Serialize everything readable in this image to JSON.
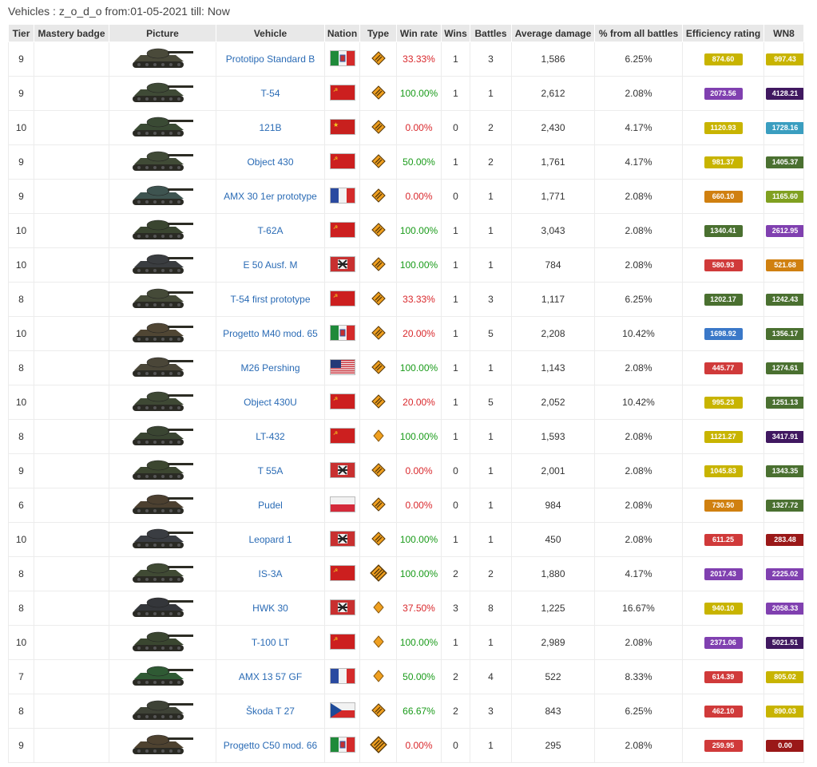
{
  "caption": "Vehicles : z_o_d_o from:01-05-2021 till: Now",
  "headers": [
    "Tier",
    "Mastery badge",
    "Picture",
    "Vehicle",
    "Nation",
    "Type",
    "Win rate",
    "Wins",
    "Battles",
    "Average damage",
    "% from all battles",
    "Efficiency rating",
    "WN8"
  ],
  "colors": {
    "win_good": "#1a9b1a",
    "win_bad": "#d9282c",
    "link": "#2a6bb5"
  },
  "rows": [
    {
      "tier": "9",
      "vehicle": "Prototipo Standard B",
      "nation": "italy",
      "type": "medium",
      "win_rate": "33.33%",
      "win_good": false,
      "wins": "1",
      "battles": "3",
      "avg_damage": "1,586",
      "pct": "6.25%",
      "eff": "874.60",
      "eff_color": "#c8b400",
      "wn8": "997.43",
      "wn8_color": "#c8b400",
      "tank_tone": "#4a4a3a"
    },
    {
      "tier": "9",
      "vehicle": "T-54",
      "nation": "ussr",
      "type": "medium",
      "win_rate": "100.00%",
      "win_good": true,
      "wins": "1",
      "battles": "1",
      "avg_damage": "2,612",
      "pct": "2.08%",
      "eff": "2073.56",
      "eff_color": "#8040b0",
      "wn8": "4128.21",
      "wn8_color": "#401860",
      "tank_tone": "#3f4a36"
    },
    {
      "tier": "10",
      "vehicle": "121B",
      "nation": "china",
      "type": "medium",
      "win_rate": "0.00%",
      "win_good": false,
      "wins": "0",
      "battles": "2",
      "avg_damage": "2,430",
      "pct": "4.17%",
      "eff": "1120.93",
      "eff_color": "#c8b400",
      "wn8": "1728.16",
      "wn8_color": "#3a9ec0",
      "tank_tone": "#3a4a34"
    },
    {
      "tier": "9",
      "vehicle": "Object 430",
      "nation": "ussr",
      "type": "medium",
      "win_rate": "50.00%",
      "win_good": true,
      "wins": "1",
      "battles": "2",
      "avg_damage": "1,761",
      "pct": "4.17%",
      "eff": "981.37",
      "eff_color": "#c8b400",
      "wn8": "1405.37",
      "wn8_color": "#4a7030",
      "tank_tone": "#404a36"
    },
    {
      "tier": "9",
      "vehicle": "AMX 30 1er prototype",
      "nation": "france",
      "type": "medium",
      "win_rate": "0.00%",
      "win_good": false,
      "wins": "0",
      "battles": "1",
      "avg_damage": "1,771",
      "pct": "2.08%",
      "eff": "660.10",
      "eff_color": "#d08010",
      "wn8": "1165.60",
      "wn8_color": "#80a020",
      "tank_tone": "#3e5450"
    },
    {
      "tier": "10",
      "vehicle": "T-62A",
      "nation": "ussr",
      "type": "medium",
      "win_rate": "100.00%",
      "win_good": true,
      "wins": "1",
      "battles": "1",
      "avg_damage": "3,043",
      "pct": "2.08%",
      "eff": "1340.41",
      "eff_color": "#4a7030",
      "wn8": "2612.95",
      "wn8_color": "#8040b0",
      "tank_tone": "#3a4530"
    },
    {
      "tier": "10",
      "vehicle": "E 50 Ausf. M",
      "nation": "germany",
      "type": "medium",
      "win_rate": "100.00%",
      "win_good": true,
      "wins": "1",
      "battles": "1",
      "avg_damage": "784",
      "pct": "2.08%",
      "eff": "580.93",
      "eff_color": "#d03a3a",
      "wn8": "521.68",
      "wn8_color": "#d08010",
      "tank_tone": "#3a3d40"
    },
    {
      "tier": "8",
      "vehicle": "T-54 first prototype",
      "nation": "ussr",
      "type": "medium",
      "win_rate": "33.33%",
      "win_good": false,
      "wins": "1",
      "battles": "3",
      "avg_damage": "1,117",
      "pct": "6.25%",
      "eff": "1202.17",
      "eff_color": "#4a7030",
      "wn8": "1242.43",
      "wn8_color": "#4a7030",
      "tank_tone": "#454a38"
    },
    {
      "tier": "10",
      "vehicle": "Progetto M40 mod. 65",
      "nation": "italy",
      "type": "medium",
      "win_rate": "20.00%",
      "win_good": false,
      "wins": "1",
      "battles": "5",
      "avg_damage": "2,208",
      "pct": "10.42%",
      "eff": "1698.92",
      "eff_color": "#3a78c8",
      "wn8": "1356.17",
      "wn8_color": "#4a7030",
      "tank_tone": "#504634"
    },
    {
      "tier": "8",
      "vehicle": "M26 Pershing",
      "nation": "usa",
      "type": "medium",
      "win_rate": "100.00%",
      "win_good": true,
      "wins": "1",
      "battles": "1",
      "avg_damage": "1,143",
      "pct": "2.08%",
      "eff": "445.77",
      "eff_color": "#d03a3a",
      "wn8": "1274.61",
      "wn8_color": "#4a7030",
      "tank_tone": "#4a4638"
    },
    {
      "tier": "10",
      "vehicle": "Object 430U",
      "nation": "ussr",
      "type": "medium",
      "win_rate": "20.00%",
      "win_good": false,
      "wins": "1",
      "battles": "5",
      "avg_damage": "2,052",
      "pct": "10.42%",
      "eff": "995.23",
      "eff_color": "#c8b400",
      "wn8": "1251.13",
      "wn8_color": "#4a7030",
      "tank_tone": "#3e4834"
    },
    {
      "tier": "8",
      "vehicle": "LT-432",
      "nation": "ussr",
      "type": "light",
      "win_rate": "100.00%",
      "win_good": true,
      "wins": "1",
      "battles": "1",
      "avg_damage": "1,593",
      "pct": "2.08%",
      "eff": "1121.27",
      "eff_color": "#c8b400",
      "wn8": "3417.91",
      "wn8_color": "#401860",
      "tank_tone": "#3a4532"
    },
    {
      "tier": "9",
      "vehicle": "T 55A",
      "nation": "germany",
      "type": "medium",
      "win_rate": "0.00%",
      "win_good": false,
      "wins": "0",
      "battles": "1",
      "avg_damage": "2,001",
      "pct": "2.08%",
      "eff": "1045.83",
      "eff_color": "#c8b400",
      "wn8": "1343.35",
      "wn8_color": "#4a7030",
      "tank_tone": "#3c4630"
    },
    {
      "tier": "6",
      "vehicle": "Pudel",
      "nation": "poland",
      "type": "medium",
      "win_rate": "0.00%",
      "win_good": false,
      "wins": "0",
      "battles": "1",
      "avg_damage": "984",
      "pct": "2.08%",
      "eff": "730.50",
      "eff_color": "#d08010",
      "wn8": "1327.72",
      "wn8_color": "#4a7030",
      "tank_tone": "#4c4030"
    },
    {
      "tier": "10",
      "vehicle": "Leopard 1",
      "nation": "germany",
      "type": "medium",
      "win_rate": "100.00%",
      "win_good": true,
      "wins": "1",
      "battles": "1",
      "avg_damage": "450",
      "pct": "2.08%",
      "eff": "611.25",
      "eff_color": "#d03a3a",
      "wn8": "283.48",
      "wn8_color": "#9a1818",
      "tank_tone": "#3a3d42"
    },
    {
      "tier": "8",
      "vehicle": "IS-3A",
      "nation": "ussr",
      "type": "heavy",
      "win_rate": "100.00%",
      "win_good": true,
      "wins": "2",
      "battles": "2",
      "avg_damage": "1,880",
      "pct": "4.17%",
      "eff": "2017.43",
      "eff_color": "#8040b0",
      "wn8": "2225.02",
      "wn8_color": "#8040b0",
      "tank_tone": "#404a34"
    },
    {
      "tier": "8",
      "vehicle": "HWK 30",
      "nation": "germany",
      "type": "light",
      "win_rate": "37.50%",
      "win_good": false,
      "wins": "3",
      "battles": "8",
      "avg_damage": "1,225",
      "pct": "16.67%",
      "eff": "940.10",
      "eff_color": "#c8b400",
      "wn8": "2058.33",
      "wn8_color": "#8040b0",
      "tank_tone": "#34363a"
    },
    {
      "tier": "10",
      "vehicle": "T-100 LT",
      "nation": "ussr",
      "type": "light",
      "win_rate": "100.00%",
      "win_good": true,
      "wins": "1",
      "battles": "1",
      "avg_damage": "2,989",
      "pct": "2.08%",
      "eff": "2371.06",
      "eff_color": "#8040b0",
      "wn8": "5021.51",
      "wn8_color": "#401860",
      "tank_tone": "#3a4630"
    },
    {
      "tier": "7",
      "vehicle": "AMX 13 57 GF",
      "nation": "france",
      "type": "light",
      "win_rate": "50.00%",
      "win_good": true,
      "wins": "2",
      "battles": "4",
      "avg_damage": "522",
      "pct": "8.33%",
      "eff": "614.39",
      "eff_color": "#d03a3a",
      "wn8": "805.02",
      "wn8_color": "#c8b400",
      "tank_tone": "#2f5a34"
    },
    {
      "tier": "8",
      "vehicle": "Škoda T 27",
      "nation": "czech",
      "type": "medium",
      "win_rate": "66.67%",
      "win_good": true,
      "wins": "2",
      "battles": "3",
      "avg_damage": "843",
      "pct": "6.25%",
      "eff": "462.10",
      "eff_color": "#d03a3a",
      "wn8": "890.03",
      "wn8_color": "#c8b400",
      "tank_tone": "#3e4236"
    },
    {
      "tier": "9",
      "vehicle": "Progetto C50 mod. 66",
      "nation": "italy",
      "type": "heavy",
      "win_rate": "0.00%",
      "win_good": false,
      "wins": "0",
      "battles": "1",
      "avg_damage": "295",
      "pct": "2.08%",
      "eff": "259.95",
      "eff_color": "#d03a3a",
      "wn8": "0.00",
      "wn8_color": "#9a1818",
      "tank_tone": "#4e4230"
    }
  ]
}
